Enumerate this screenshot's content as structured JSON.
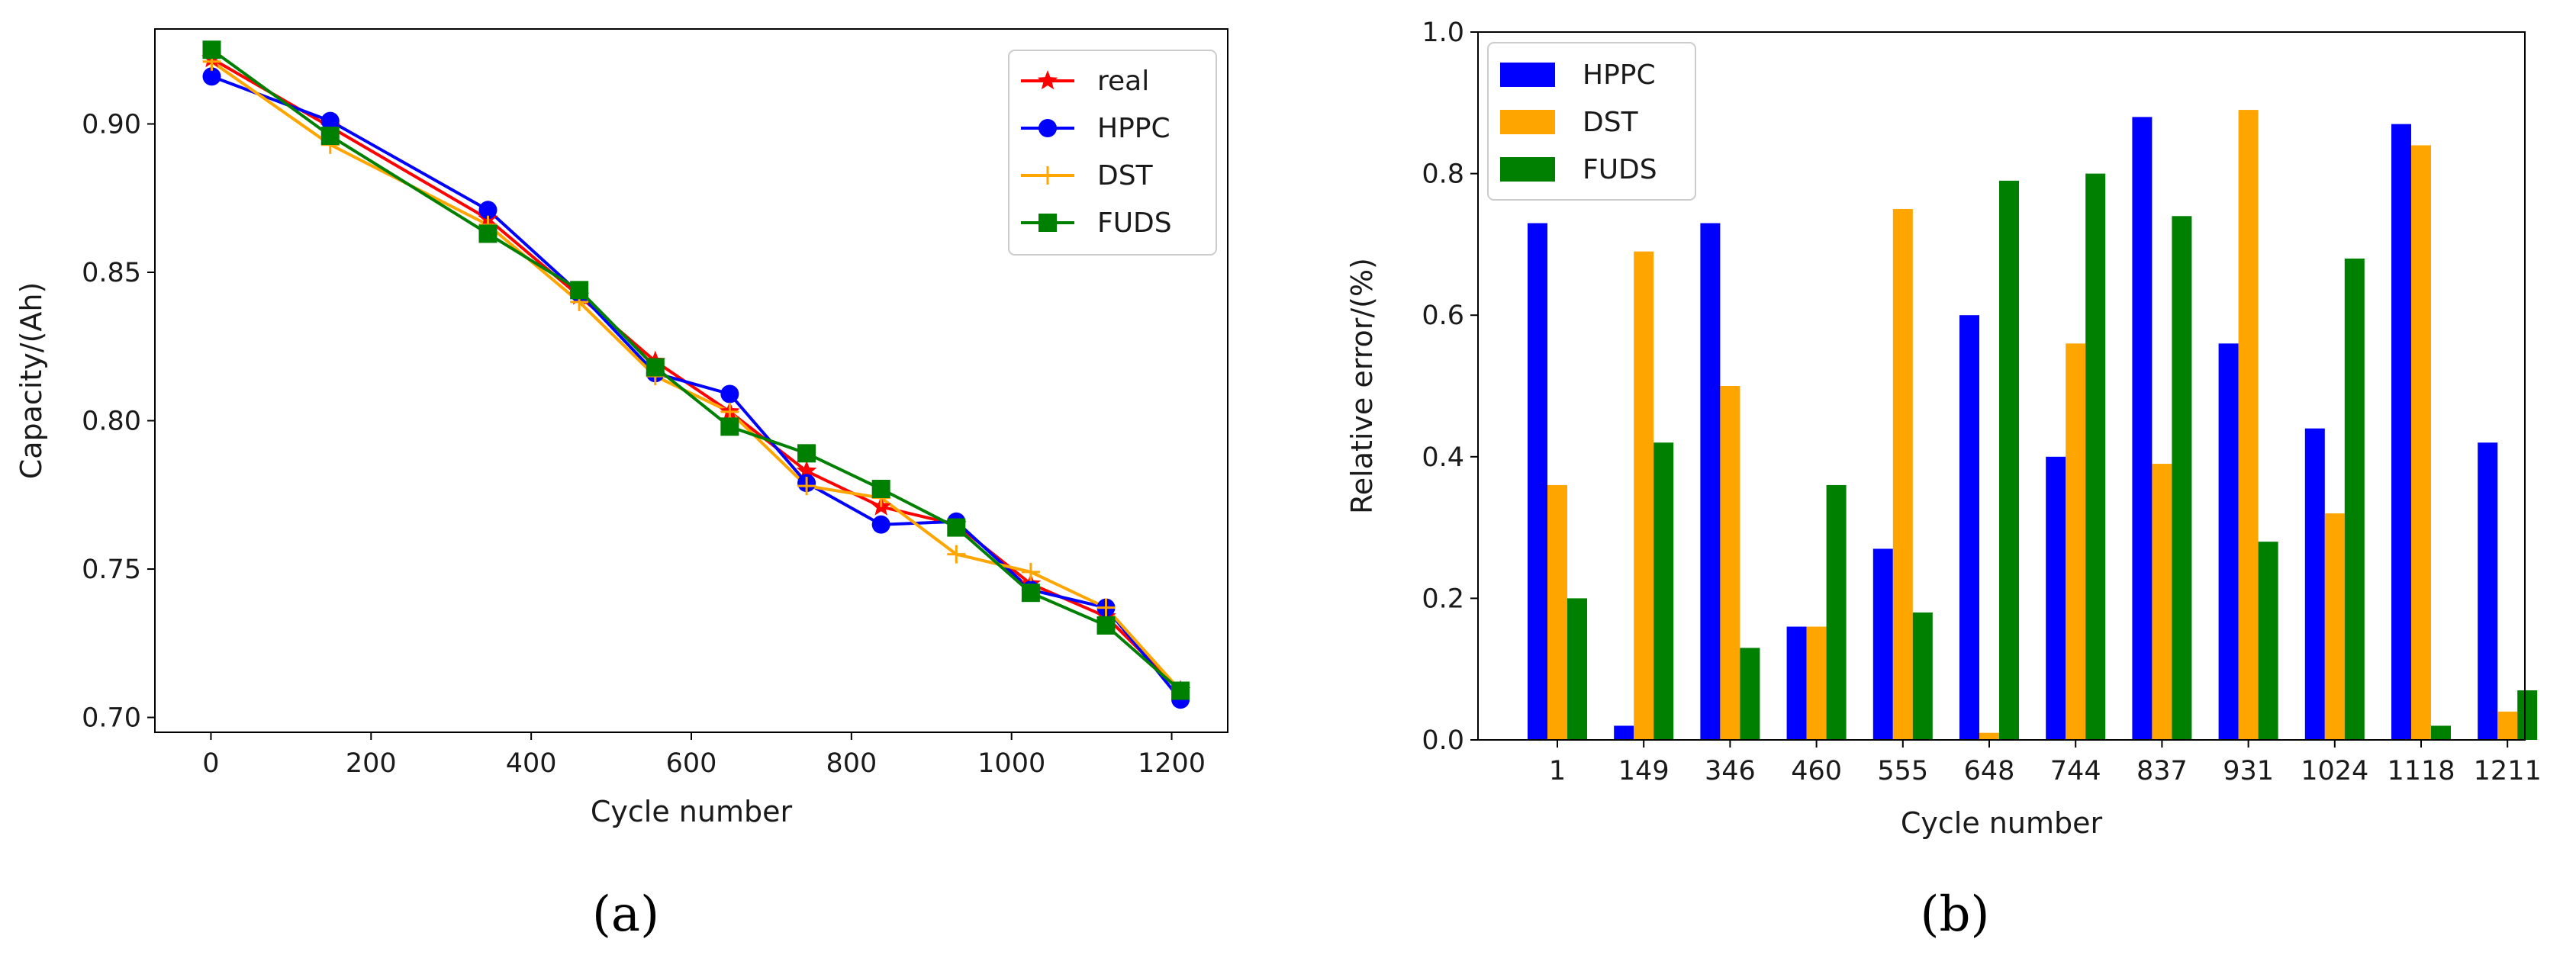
{
  "chart_data": [
    {
      "type": "line",
      "xlabel": "Cycle number",
      "ylabel": "Capacity/(Ah)",
      "xlim": [
        -70,
        1270
      ],
      "ylim": [
        0.695,
        0.932
      ],
      "xticks": [
        0,
        200,
        400,
        600,
        800,
        1000,
        1200
      ],
      "yticks": [
        0.7,
        0.75,
        0.8,
        0.85,
        0.9
      ],
      "ytick_labels": [
        "0.70",
        "0.75",
        "0.80",
        "0.85",
        "0.90"
      ],
      "x": [
        1,
        149,
        346,
        460,
        555,
        648,
        744,
        837,
        931,
        1024,
        1118,
        1211
      ],
      "series": [
        {
          "name": "real",
          "color": "#ff0000",
          "marker": "star",
          "values": [
            0.922,
            0.899,
            0.868,
            0.842,
            0.82,
            0.803,
            0.783,
            0.771,
            0.765,
            0.745,
            0.734,
            0.709
          ]
        },
        {
          "name": "HPPC",
          "color": "#0000ff",
          "marker": "circle",
          "values": [
            0.916,
            0.901,
            0.871,
            0.843,
            0.816,
            0.809,
            0.779,
            0.765,
            0.766,
            0.743,
            0.737,
            0.706
          ]
        },
        {
          "name": "DST",
          "color": "#ffa500",
          "marker": "plus",
          "values": [
            0.921,
            0.893,
            0.866,
            0.84,
            0.815,
            0.803,
            0.778,
            0.774,
            0.755,
            0.749,
            0.737,
            0.709
          ]
        },
        {
          "name": "FUDS",
          "color": "#008000",
          "marker": "square",
          "values": [
            0.925,
            0.896,
            0.863,
            0.844,
            0.818,
            0.798,
            0.789,
            0.777,
            0.764,
            0.742,
            0.731,
            0.709
          ]
        }
      ],
      "legend_position": "top-right",
      "caption": "(a)"
    },
    {
      "type": "bar",
      "xlabel": "Cycle number",
      "ylabel": "Relative error/(%)",
      "ylim": [
        0.0,
        1.0
      ],
      "yticks": [
        0.0,
        0.2,
        0.4,
        0.6,
        0.8,
        1.0
      ],
      "ytick_labels": [
        "0.0",
        "0.2",
        "0.4",
        "0.6",
        "0.8",
        "1.0"
      ],
      "categories": [
        "1",
        "149",
        "346",
        "460",
        "555",
        "648",
        "744",
        "837",
        "931",
        "1024",
        "1118",
        "1211"
      ],
      "series": [
        {
          "name": "HPPC",
          "color": "#0000ff",
          "values": [
            0.73,
            0.02,
            0.73,
            0.16,
            0.27,
            0.6,
            0.4,
            0.88,
            0.56,
            0.44,
            0.87,
            0.42
          ]
        },
        {
          "name": "DST",
          "color": "#ffa500",
          "values": [
            0.36,
            0.69,
            0.5,
            0.16,
            0.75,
            0.01,
            0.56,
            0.39,
            0.89,
            0.32,
            0.84,
            0.04
          ]
        },
        {
          "name": "FUDS",
          "color": "#008000",
          "values": [
            0.2,
            0.42,
            0.13,
            0.36,
            0.18,
            0.79,
            0.8,
            0.74,
            0.28,
            0.68,
            0.02,
            0.07
          ]
        }
      ],
      "legend_position": "top-left",
      "caption": "(b)"
    }
  ]
}
